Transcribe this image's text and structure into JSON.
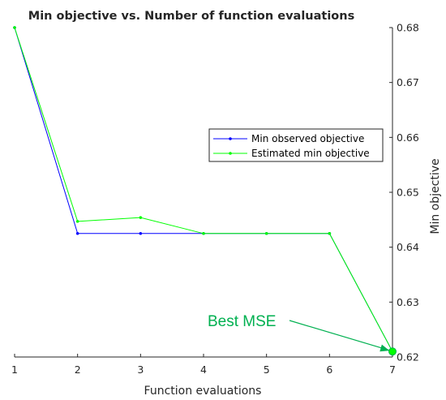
{
  "chart_data": {
    "type": "line",
    "title": "Min objective vs. Number of function evaluations",
    "xlabel": "Function evaluations",
    "ylabel": "Min objective",
    "x": [
      1,
      2,
      3,
      4,
      5,
      6,
      7
    ],
    "xlim": [
      1,
      7
    ],
    "ylim": [
      0.62,
      0.68
    ],
    "xticks": [
      "1",
      "2",
      "3",
      "4",
      "5",
      "6",
      "7"
    ],
    "yticks": [
      "0.62",
      "0.63",
      "0.64",
      "0.65",
      "0.66",
      "0.67",
      "0.68"
    ],
    "y_axis_position": "right",
    "grid": false,
    "legend_position": "right",
    "series": [
      {
        "name": "Min observed objective",
        "color": "#0000ff",
        "values": [
          0.68,
          0.6425,
          0.6425,
          0.6425,
          0.6425,
          0.6425,
          0.621
        ]
      },
      {
        "name": "Estimated min objective",
        "color": "#00ff00",
        "values": [
          0.68,
          0.6447,
          0.6454,
          0.6425,
          0.6425,
          0.6425,
          0.621
        ]
      }
    ],
    "annotation": {
      "text": "Best MSE",
      "color": "#00b050",
      "target_x": 7,
      "target_y": 0.621
    }
  }
}
